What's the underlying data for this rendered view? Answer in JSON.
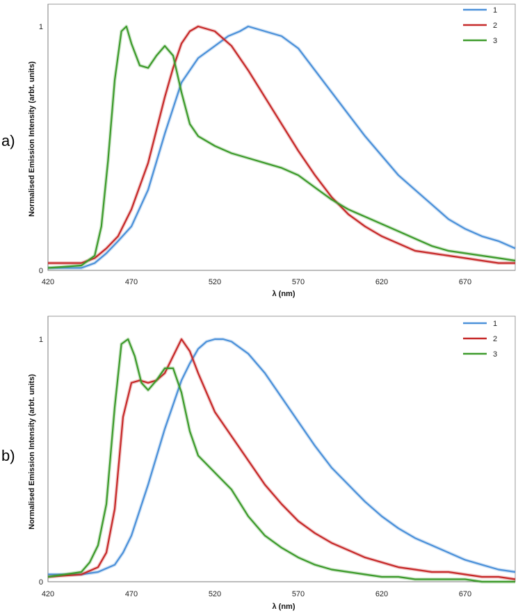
{
  "chart_data": [
    {
      "type": "line",
      "panel_label": "a)",
      "xlabel": "λ (nm)",
      "ylabel": "Normalised Emission Intensity (arbt. units)",
      "xlim": [
        420,
        700
      ],
      "ylim": [
        0,
        1
      ],
      "x_ticks": [
        "420",
        "470",
        "520",
        "570",
        "620",
        "670"
      ],
      "y_ticks": [
        "0",
        "1"
      ],
      "legend_position": "top-right",
      "series": [
        {
          "name": "1",
          "color": "#4a90d9",
          "x": [
            420,
            440,
            448,
            455,
            462,
            470,
            480,
            490,
            500,
            510,
            520,
            528,
            535,
            540,
            545,
            550,
            560,
            570,
            580,
            590,
            600,
            610,
            620,
            630,
            640,
            650,
            660,
            670,
            680,
            690,
            700
          ],
          "y": [
            0.01,
            0.01,
            0.03,
            0.07,
            0.12,
            0.18,
            0.33,
            0.56,
            0.77,
            0.87,
            0.92,
            0.96,
            0.98,
            1.0,
            0.99,
            0.98,
            0.96,
            0.91,
            0.82,
            0.73,
            0.64,
            0.55,
            0.47,
            0.39,
            0.33,
            0.27,
            0.21,
            0.17,
            0.14,
            0.12,
            0.09
          ]
        },
        {
          "name": "2",
          "color": "#c62828",
          "x": [
            420,
            440,
            448,
            455,
            462,
            470,
            480,
            490,
            495,
            500,
            505,
            510,
            515,
            520,
            530,
            540,
            550,
            560,
            570,
            580,
            590,
            600,
            610,
            620,
            630,
            640,
            650,
            660,
            670,
            680,
            690,
            700
          ],
          "y": [
            0.03,
            0.03,
            0.05,
            0.09,
            0.14,
            0.25,
            0.44,
            0.71,
            0.83,
            0.93,
            0.98,
            1.0,
            0.99,
            0.98,
            0.92,
            0.82,
            0.71,
            0.6,
            0.49,
            0.39,
            0.3,
            0.23,
            0.18,
            0.14,
            0.11,
            0.08,
            0.07,
            0.06,
            0.05,
            0.04,
            0.03,
            0.03
          ]
        },
        {
          "name": "3",
          "color": "#3c9a2a",
          "x": [
            420,
            440,
            448,
            452,
            456,
            460,
            464,
            467,
            470,
            475,
            480,
            485,
            490,
            495,
            500,
            505,
            510,
            520,
            530,
            540,
            550,
            560,
            570,
            580,
            590,
            600,
            610,
            620,
            630,
            640,
            650,
            660,
            670,
            680,
            690,
            700
          ],
          "y": [
            0.01,
            0.02,
            0.06,
            0.18,
            0.45,
            0.78,
            0.98,
            1.0,
            0.93,
            0.84,
            0.83,
            0.88,
            0.92,
            0.88,
            0.73,
            0.6,
            0.55,
            0.51,
            0.48,
            0.46,
            0.44,
            0.42,
            0.39,
            0.34,
            0.29,
            0.25,
            0.22,
            0.19,
            0.16,
            0.13,
            0.1,
            0.08,
            0.07,
            0.06,
            0.05,
            0.04
          ]
        }
      ]
    },
    {
      "type": "line",
      "panel_label": "b)",
      "xlabel": "λ (nm)",
      "ylabel": "Normalised Emission Intensity (arbt. units)",
      "xlim": [
        420,
        700
      ],
      "ylim": [
        0,
        1
      ],
      "x_ticks": [
        "420",
        "470",
        "520",
        "570",
        "620",
        "670"
      ],
      "y_ticks": [
        "0",
        "1"
      ],
      "legend_position": "top-right",
      "series": [
        {
          "name": "1",
          "color": "#4a90d9",
          "x": [
            420,
            440,
            450,
            460,
            465,
            470,
            480,
            490,
            500,
            505,
            510,
            515,
            520,
            525,
            530,
            540,
            550,
            560,
            570,
            580,
            590,
            600,
            610,
            620,
            630,
            640,
            650,
            660,
            670,
            680,
            690,
            700
          ],
          "y": [
            0.03,
            0.03,
            0.04,
            0.07,
            0.12,
            0.19,
            0.4,
            0.63,
            0.83,
            0.9,
            0.96,
            0.99,
            1.0,
            1.0,
            0.99,
            0.94,
            0.86,
            0.76,
            0.66,
            0.56,
            0.47,
            0.4,
            0.33,
            0.27,
            0.22,
            0.18,
            0.15,
            0.12,
            0.09,
            0.07,
            0.05,
            0.04
          ]
        },
        {
          "name": "2",
          "color": "#c62828",
          "x": [
            420,
            440,
            450,
            455,
            460,
            465,
            470,
            475,
            480,
            485,
            490,
            495,
            500,
            505,
            510,
            520,
            530,
            540,
            550,
            560,
            570,
            580,
            590,
            600,
            610,
            620,
            630,
            640,
            650,
            660,
            670,
            680,
            690,
            700
          ],
          "y": [
            0.02,
            0.03,
            0.06,
            0.12,
            0.3,
            0.68,
            0.82,
            0.83,
            0.82,
            0.83,
            0.86,
            0.93,
            1.0,
            0.95,
            0.86,
            0.7,
            0.6,
            0.5,
            0.4,
            0.32,
            0.25,
            0.2,
            0.16,
            0.13,
            0.1,
            0.08,
            0.06,
            0.05,
            0.04,
            0.04,
            0.03,
            0.02,
            0.02,
            0.01
          ]
        },
        {
          "name": "3",
          "color": "#3c9a2a",
          "x": [
            420,
            440,
            445,
            450,
            455,
            460,
            464,
            468,
            472,
            476,
            480,
            485,
            490,
            495,
            500,
            505,
            510,
            520,
            530,
            540,
            550,
            560,
            570,
            580,
            590,
            600,
            610,
            620,
            630,
            640,
            650,
            660,
            670,
            680,
            690,
            700
          ],
          "y": [
            0.02,
            0.04,
            0.08,
            0.15,
            0.32,
            0.72,
            0.98,
            1.0,
            0.93,
            0.82,
            0.79,
            0.83,
            0.88,
            0.88,
            0.78,
            0.62,
            0.52,
            0.45,
            0.38,
            0.27,
            0.19,
            0.14,
            0.1,
            0.07,
            0.05,
            0.04,
            0.03,
            0.02,
            0.02,
            0.01,
            0.01,
            0.01,
            0.01,
            0.0,
            0.0,
            0.0
          ]
        }
      ]
    }
  ]
}
